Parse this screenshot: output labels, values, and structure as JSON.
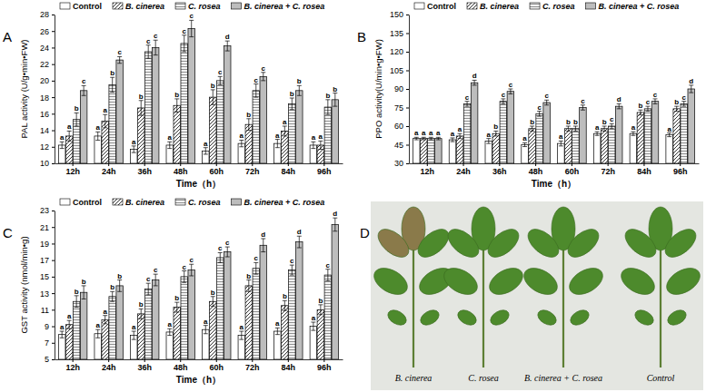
{
  "chart_data": [
    {
      "type": "bar",
      "panel": "A",
      "x_label": "Time（h）",
      "y_label": "PAL activity (U/g•min•FW)",
      "categories": [
        "12h",
        "24h",
        "36h",
        "48h",
        "60h",
        "72h",
        "84h",
        "96h"
      ],
      "ylim": [
        10,
        28
      ],
      "yticks": [
        10,
        12,
        14,
        16,
        18,
        20,
        22,
        24,
        26,
        28
      ],
      "series": [
        {
          "name": "Control",
          "color": "#ffffff",
          "values": [
            12.2,
            13.3,
            11.7,
            12.2,
            11.5,
            12.4,
            12.4,
            12.2
          ],
          "errors": [
            0.4,
            0.5,
            0.4,
            0.4,
            0.4,
            0.4,
            0.5,
            0.4
          ],
          "letters": [
            "a",
            "a",
            "a",
            "a",
            "a",
            "a",
            "a",
            "a"
          ]
        },
        {
          "name": "B. cinerea",
          "color": "#ffffff",
          "values": [
            13.3,
            15.1,
            16.7,
            17.0,
            18.0,
            14.7,
            13.9,
            12.2
          ],
          "errors": [
            0.6,
            0.8,
            0.9,
            0.8,
            0.9,
            0.7,
            0.6,
            0.5
          ],
          "letters": [
            "a",
            "a",
            "b",
            "b",
            "b",
            "b",
            "a",
            "a"
          ]
        },
        {
          "name": "C. rosea",
          "color": "#f2f2f2",
          "values": [
            15.3,
            19.5,
            23.5,
            24.5,
            20.0,
            18.8,
            17.2,
            16.8
          ],
          "errors": [
            0.8,
            0.9,
            0.8,
            1.0,
            0.5,
            0.8,
            0.7,
            0.9
          ],
          "letters": [
            "b",
            "b",
            "c",
            "c",
            "c",
            "c",
            "b",
            "b"
          ]
        },
        {
          "name": "B. cinerea + C. rosea",
          "color": "#bdbdbd",
          "values": [
            18.8,
            22.5,
            24.0,
            26.3,
            24.2,
            20.5,
            18.8,
            17.7
          ],
          "errors": [
            0.6,
            0.4,
            0.9,
            1.0,
            0.6,
            0.5,
            0.6,
            0.8
          ],
          "letters": [
            "c",
            "c",
            "c",
            "c",
            "d",
            "c",
            "b",
            "b"
          ]
        }
      ]
    },
    {
      "type": "bar",
      "panel": "B",
      "x_label": "Time（h）",
      "y_label": "PPO activity(U/min•g•FW)",
      "categories": [
        "12h",
        "24h",
        "36h",
        "48h",
        "60h",
        "72h",
        "84h",
        "96h"
      ],
      "ylim": [
        30,
        150
      ],
      "yticks": [
        30,
        45,
        60,
        75,
        90,
        105,
        120,
        135,
        150
      ],
      "series": [
        {
          "name": "Control",
          "color": "#ffffff",
          "values": [
            50,
            49,
            48,
            45,
            46,
            54,
            54,
            53
          ],
          "errors": [
            1,
            1.5,
            2,
            1.5,
            2,
            1.5,
            1.5,
            1.5
          ],
          "letters": [
            "a",
            "a",
            "a",
            "a",
            "a",
            "a",
            "a",
            "a"
          ]
        },
        {
          "name": "B. cinerea",
          "color": "#ffffff",
          "values": [
            50,
            52,
            54,
            58,
            58,
            58,
            71,
            74
          ],
          "errors": [
            1,
            2,
            2,
            2,
            2,
            2,
            2,
            2
          ],
          "letters": [
            "a",
            "a",
            "b",
            "b",
            "b",
            "b",
            "b",
            "b"
          ]
        },
        {
          "name": "C. rosea",
          "color": "#f2f2f2",
          "values": [
            50,
            78,
            80,
            70,
            58,
            60,
            74,
            78
          ],
          "errors": [
            1,
            2,
            2,
            2,
            2,
            2,
            2,
            2
          ],
          "letters": [
            "a",
            "c",
            "c",
            "c",
            "b",
            "c",
            "c",
            "c"
          ]
        },
        {
          "name": "B. cinerea + C. rosea",
          "color": "#bdbdbd",
          "values": [
            50,
            95,
            88,
            79,
            75,
            76,
            80,
            90
          ],
          "errors": [
            1,
            2,
            2,
            2,
            2,
            2,
            2,
            3
          ],
          "letters": [
            "a",
            "d",
            "c",
            "c",
            "c",
            "d",
            "c",
            "d"
          ]
        }
      ]
    },
    {
      "type": "bar",
      "panel": "C",
      "x_label": "Time（h）",
      "y_label": "GST activity (nmol/min•g)",
      "categories": [
        "12h",
        "24h",
        "36h",
        "48h",
        "60h",
        "72h",
        "84h",
        "96h"
      ],
      "ylim": [
        5,
        23
      ],
      "yticks": [
        5,
        7,
        9,
        11,
        13,
        15,
        17,
        19,
        21,
        23
      ],
      "series": [
        {
          "name": "Control",
          "color": "#ffffff",
          "values": [
            8.0,
            8.1,
            7.9,
            8.3,
            8.6,
            7.9,
            8.4,
            9.0
          ],
          "errors": [
            0.4,
            0.5,
            0.5,
            0.4,
            0.5,
            0.5,
            0.4,
            0.5
          ],
          "letters": [
            "a",
            "a",
            "a",
            "a",
            "a",
            "a",
            "a",
            "a"
          ]
        },
        {
          "name": "B. cinerea",
          "color": "#ffffff",
          "values": [
            9.2,
            9.8,
            10.5,
            11.3,
            12.0,
            13.9,
            11.5,
            11.0
          ],
          "errors": [
            0.5,
            0.5,
            0.6,
            0.6,
            0.6,
            0.7,
            0.6,
            0.6
          ],
          "letters": [
            "a",
            "a",
            "b",
            "b",
            "b",
            "b",
            "b",
            "b"
          ]
        },
        {
          "name": "C. rosea",
          "color": "#f2f2f2",
          "values": [
            12.0,
            12.6,
            13.5,
            15.0,
            17.3,
            16.0,
            15.8,
            15.2
          ],
          "errors": [
            0.7,
            0.6,
            0.7,
            0.7,
            0.6,
            0.7,
            0.6,
            0.7
          ],
          "letters": [
            "b",
            "b",
            "c",
            "c",
            "c",
            "c",
            "c",
            "c"
          ]
        },
        {
          "name": "B. cinerea + C. rosea",
          "color": "#bdbdbd",
          "values": [
            13.1,
            13.9,
            14.6,
            15.8,
            18.0,
            18.8,
            19.2,
            21.3
          ],
          "errors": [
            0.8,
            0.7,
            0.7,
            0.7,
            0.6,
            0.8,
            0.7,
            0.8
          ],
          "letters": [
            "b",
            "b",
            "c",
            "c",
            "c",
            "d",
            "d",
            "d"
          ]
        }
      ]
    }
  ],
  "photo_panel": {
    "panel": "D",
    "labels": [
      "B. cinerea",
      "C. rosea",
      "B. cinerea + C. rosea",
      "Control"
    ]
  }
}
